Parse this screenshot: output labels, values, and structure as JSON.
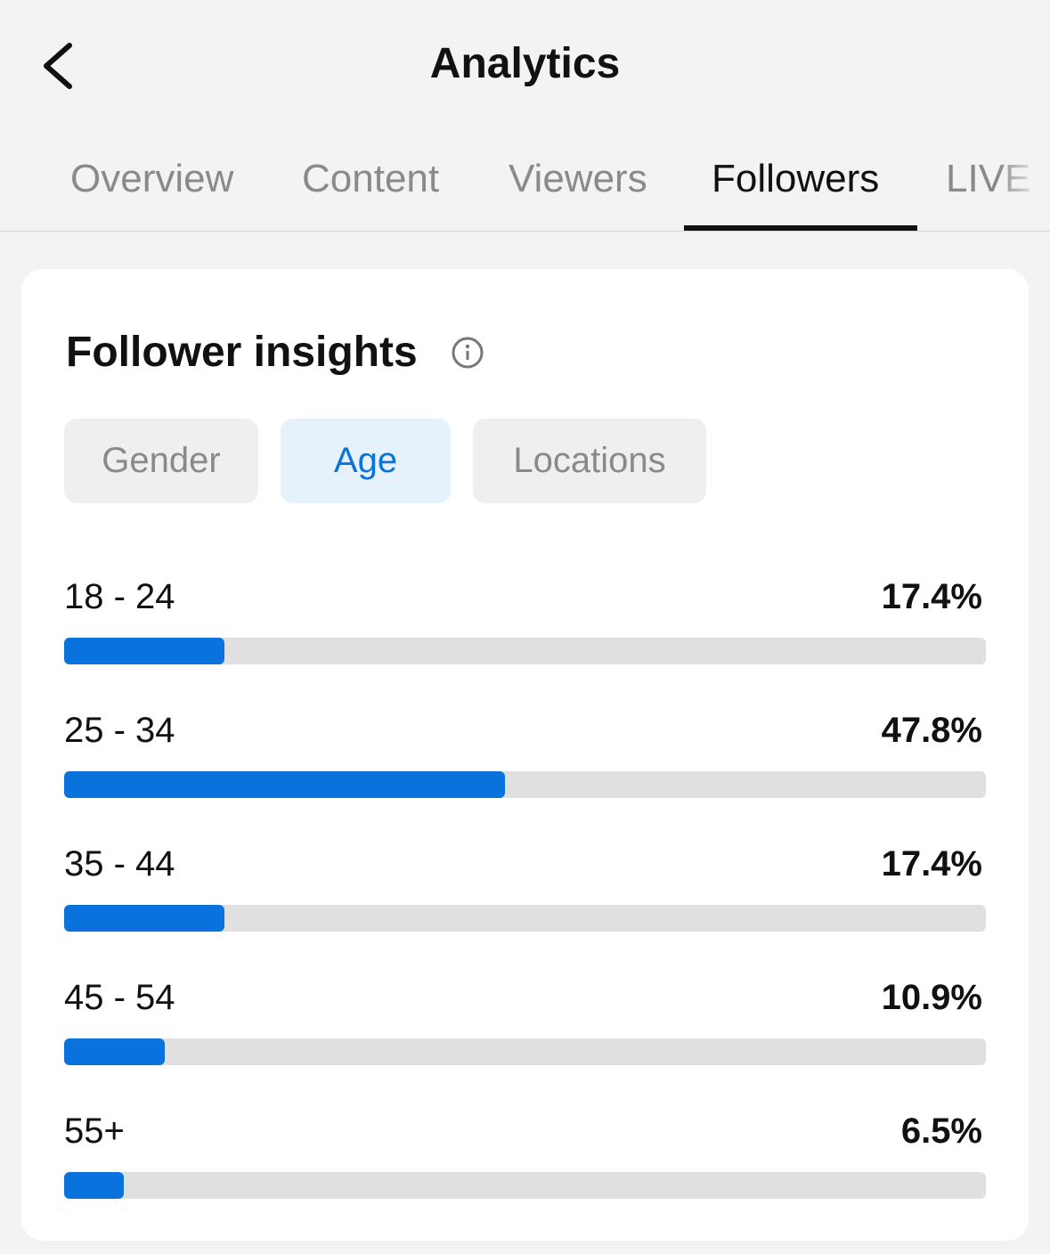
{
  "header": {
    "title": "Analytics"
  },
  "tabs": [
    "Overview",
    "Content",
    "Viewers",
    "Followers",
    "LIVE"
  ],
  "card": {
    "title": "Follower insights",
    "filters": [
      "Gender",
      "Age",
      "Locations"
    ],
    "chart_data": {
      "type": "bar",
      "categories": [
        "18 - 24",
        "25 - 34",
        "35 - 44",
        "45 - 54",
        "55+"
      ],
      "values": [
        17.4,
        47.8,
        17.4,
        10.9,
        6.5
      ],
      "value_labels": [
        "17.4%",
        "47.8%",
        "17.4%",
        "10.9%",
        "6.5%"
      ],
      "xlim": [
        0,
        100
      ],
      "color": "#0a72dd"
    }
  }
}
